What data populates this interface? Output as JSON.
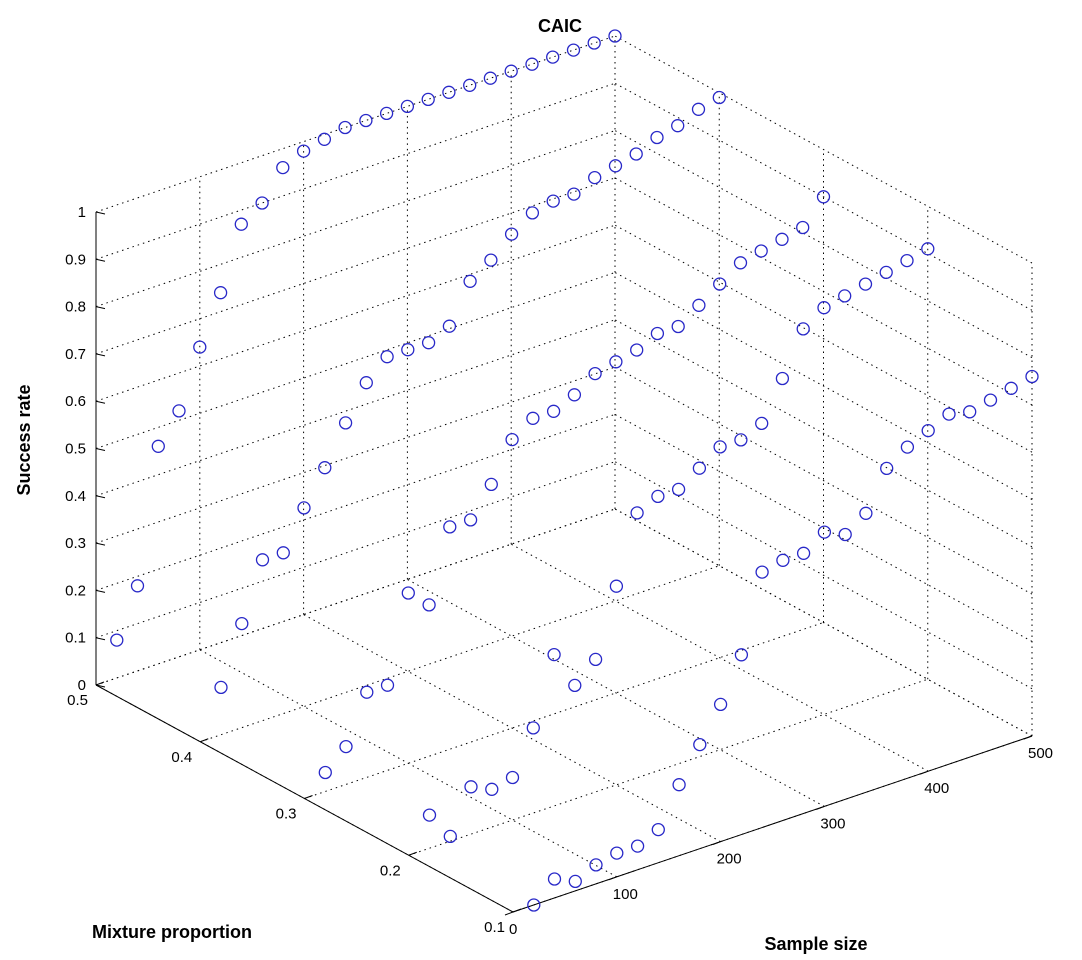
{
  "chart_data": {
    "type": "scatter",
    "title": "CAIC",
    "xlabel": "Sample size",
    "ylabel": "Mixture proportion",
    "zlabel": "Success rate",
    "xlim": [
      0,
      500
    ],
    "ylim": [
      0.1,
      0.5
    ],
    "zlim": [
      0,
      1
    ],
    "x_ticks": [
      "0",
      "100",
      "200",
      "300",
      "400",
      "500"
    ],
    "y_ticks": [
      "0.1",
      "0.2",
      "0.3",
      "0.4",
      "0.5"
    ],
    "z_ticks": [
      "0",
      "0.1",
      "0.2",
      "0.3",
      "0.4",
      "0.5",
      "0.6",
      "0.7",
      "0.8",
      "0.9",
      "1"
    ],
    "grid": true,
    "marker": "o",
    "marker_color": "#2828c8",
    "sample_sizes": [
      20,
      40,
      60,
      80,
      100,
      120,
      140,
      160,
      180,
      200,
      220,
      240,
      260,
      280,
      300,
      320,
      340,
      360,
      380,
      400,
      420,
      440,
      460,
      480,
      500
    ],
    "series": [
      {
        "y": 0.1,
        "z": [
          0.0,
          0.04,
          0.02,
          0.04,
          0.05,
          0.05,
          0.07,
          0.15,
          0.22,
          0.29,
          0.38,
          0.54,
          0.55,
          0.55,
          0.58,
          0.56,
          0.59,
          0.67,
          0.7,
          0.72,
          0.74,
          0.73,
          0.74,
          0.75,
          0.76
        ]
      },
      {
        "y": 0.2,
        "z": [
          0.07,
          0.01,
          0.1,
          0.08,
          0.09,
          0.18,
          0.32,
          0.24,
          0.28,
          0.42,
          0.56,
          0.58,
          0.58,
          0.61,
          0.64,
          0.64,
          0.66,
          0.74,
          0.83,
          0.86,
          0.87,
          0.88,
          0.89,
          0.9,
          0.91
        ]
      },
      {
        "y": 0.3,
        "z": [
          0.04,
          0.08,
          0.18,
          0.18,
          0.36,
          0.32,
          0.47,
          0.47,
          0.53,
          0.61,
          0.64,
          0.64,
          0.66,
          0.69,
          0.7,
          0.71,
          0.73,
          0.73,
          0.76,
          0.79,
          0.82,
          0.83,
          0.84,
          0.85,
          0.9
        ]
      },
      {
        "y": 0.4,
        "z": [
          0.1,
          0.22,
          0.34,
          0.34,
          0.42,
          0.49,
          0.57,
          0.64,
          0.68,
          0.68,
          0.68,
          0.7,
          0.78,
          0.81,
          0.85,
          0.88,
          0.89,
          0.89,
          0.91,
          0.92,
          0.93,
          0.95,
          0.96,
          0.98,
          0.99
        ]
      },
      {
        "y": 0.5,
        "z": [
          0.08,
          0.18,
          0.46,
          0.52,
          0.64,
          0.74,
          0.87,
          0.9,
          0.96,
          0.98,
          0.99,
          1.0,
          1.0,
          1.0,
          1.0,
          1.0,
          1.0,
          1.0,
          1.0,
          1.0,
          1.0,
          1.0,
          1.0,
          1.0,
          1.0
        ]
      }
    ]
  }
}
